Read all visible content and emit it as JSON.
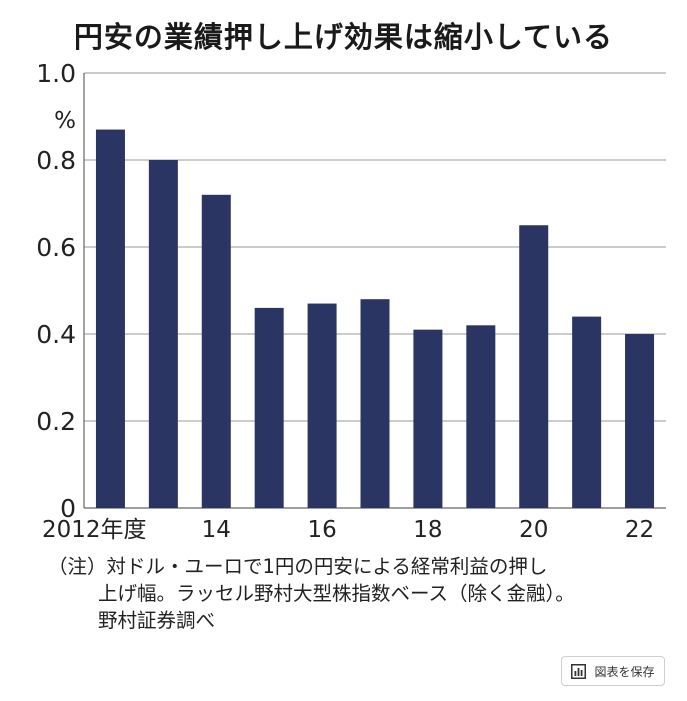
{
  "header": {
    "title": "円安の業績押し上げ効果は縮小している"
  },
  "chart_data": {
    "type": "bar",
    "title": "円安の業績押し上げ効果は縮小している",
    "ylabel": "%",
    "ylim": [
      0,
      1.0
    ],
    "yticks": [
      "0",
      "0.2",
      "0.4",
      "0.6",
      "0.8",
      "1.0"
    ],
    "grid": true,
    "categories": [
      "2012",
      "2013",
      "2014",
      "2015",
      "2016",
      "2017",
      "2018",
      "2019",
      "2020",
      "2021",
      "2022"
    ],
    "xtick_labels": [
      "2012年度",
      "",
      "14",
      "",
      "16",
      "",
      "18",
      "",
      "20",
      "",
      "22"
    ],
    "values": [
      0.87,
      0.8,
      0.72,
      0.46,
      0.47,
      0.48,
      0.41,
      0.42,
      0.65,
      0.44,
      0.4
    ],
    "bar_color": "#2b3564"
  },
  "note": {
    "line1": "（注）対ドル・ユーロで1円の円安による経常利益の押し",
    "line2": "上げ幅。ラッセル野村大型株指数ベース（除く金融）。",
    "line3": "野村証券調べ"
  },
  "save_button": {
    "label": "図表を保存",
    "icon": "bar-chart-icon"
  }
}
